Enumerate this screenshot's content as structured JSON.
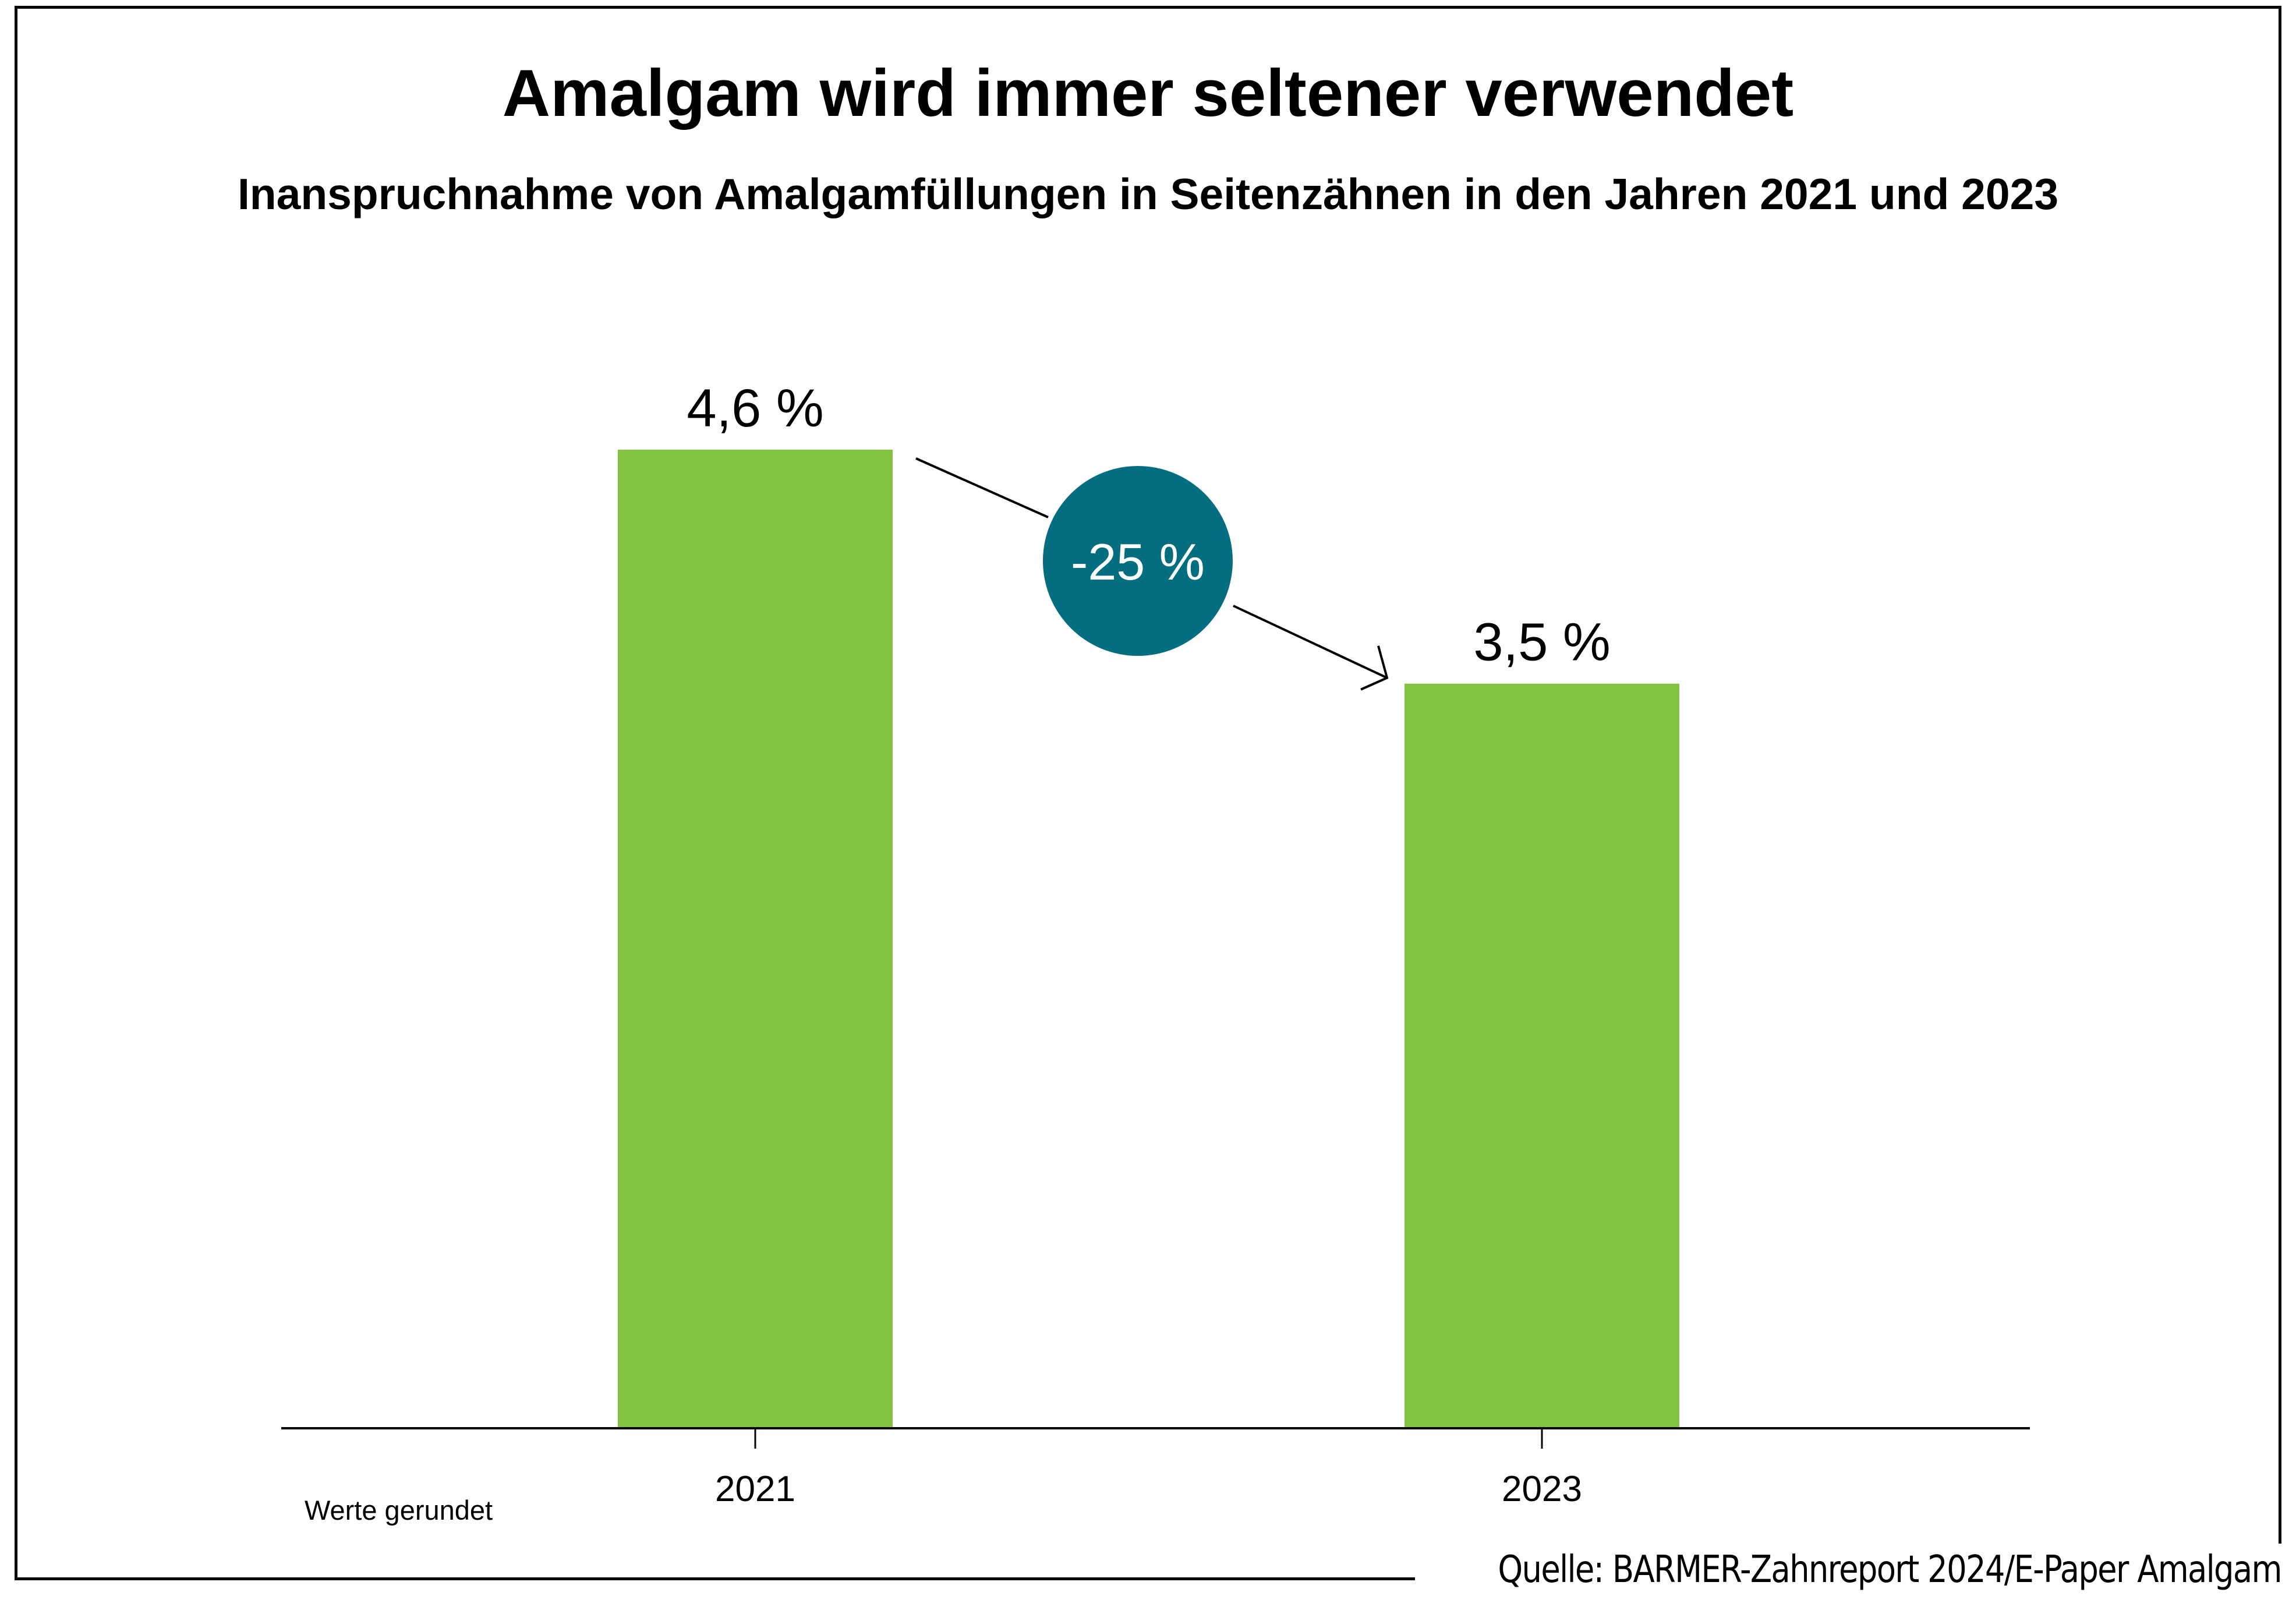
{
  "chart_data": {
    "type": "bar",
    "title": "Amalgam wird immer seltener verwendet",
    "subtitle": "Inanspruchnahme von Amalgamfüllungen in Seitenzähnen in den Jahren 2021 und 2023",
    "categories": [
      "2021",
      "2023"
    ],
    "values": [
      4.6,
      3.5
    ],
    "value_labels": [
      "4,6 %",
      "3,5 %"
    ],
    "unit": "%",
    "xlabel": "",
    "ylabel": "",
    "ylim": [
      0,
      4.6
    ],
    "grid": false,
    "legend": "none",
    "annotation": {
      "text": "-25 %",
      "from": "2021",
      "to": "2023"
    },
    "note": "Werte gerundet",
    "source": "Quelle: BARMER-Zahnreport 2024/E-Paper Amalgam",
    "colors": {
      "bar": "#82C341",
      "badge": "#026E7F",
      "badge_text": "#ffffff"
    }
  }
}
